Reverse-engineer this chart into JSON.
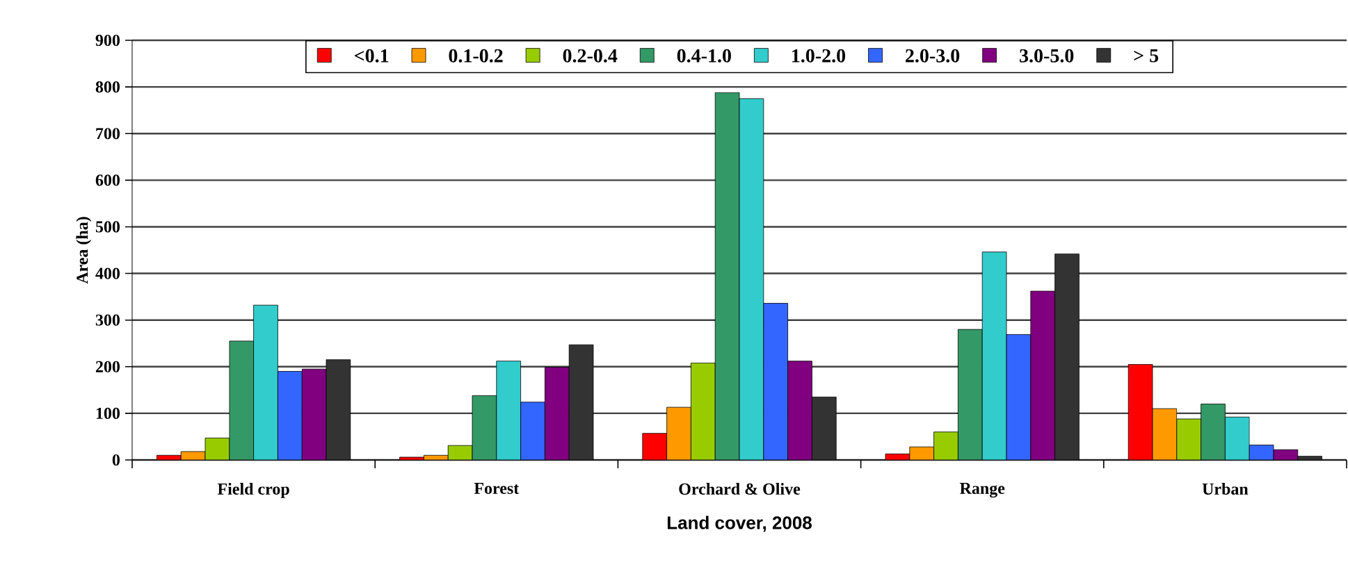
{
  "chart_data": {
    "type": "bar",
    "xlabel": "Land cover, 2008",
    "ylabel": "Area (ha)",
    "categories": [
      "Field crop",
      "Forest",
      "Orchard & Olive",
      "Range",
      "Urban"
    ],
    "series": [
      {
        "name": "<0.1",
        "color": "#ff0000",
        "values": [
          10,
          6,
          57,
          13,
          205
        ]
      },
      {
        "name": "0.1-0.2",
        "color": "#ff9900",
        "values": [
          18,
          10,
          113,
          28,
          110
        ]
      },
      {
        "name": "0.2-0.4",
        "color": "#99cc00",
        "values": [
          47,
          31,
          208,
          60,
          88
        ]
      },
      {
        "name": "0.4-1.0",
        "color": "#339966",
        "values": [
          255,
          138,
          788,
          280,
          120
        ]
      },
      {
        "name": "1.0-2.0",
        "color": "#33cccc",
        "values": [
          332,
          212,
          775,
          446,
          92
        ]
      },
      {
        "name": "2.0-3.0",
        "color": "#3366ff",
        "values": [
          190,
          124,
          336,
          269,
          32
        ]
      },
      {
        "name": "3.0-5.0",
        "color": "#800080",
        "values": [
          195,
          199,
          212,
          362,
          22
        ]
      },
      {
        "name": "> 5",
        "color": "#333333",
        "values": [
          215,
          247,
          135,
          442,
          8
        ]
      }
    ],
    "ylim": [
      0,
      900
    ],
    "yticks": [
      0,
      100,
      200,
      300,
      400,
      500,
      600,
      700,
      800,
      900
    ],
    "grid": "y",
    "legend": "top"
  }
}
